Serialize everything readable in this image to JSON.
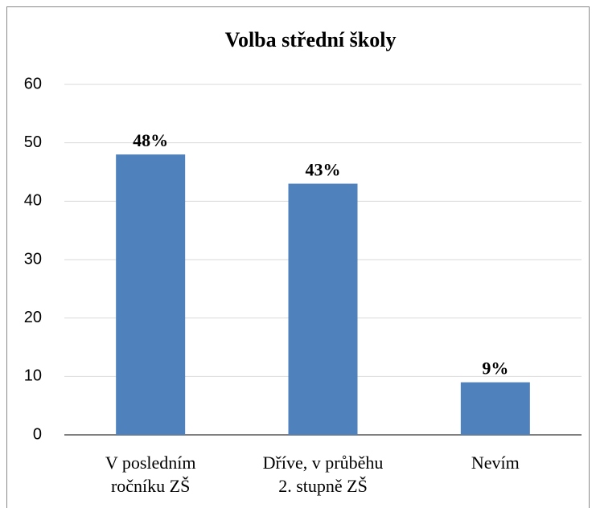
{
  "chart_data": {
    "type": "bar",
    "title": "Volba střední školy",
    "categories": [
      "V posledním\nročníku ZŠ",
      "Dříve, v průběhu\n2. stupně ZŠ",
      "Nevím"
    ],
    "values": [
      48,
      43,
      9
    ],
    "value_labels": [
      "48%",
      "43%",
      "9%"
    ],
    "color": "#4f81bd",
    "ylim": [
      0,
      60
    ],
    "yticks": [
      0,
      10,
      20,
      30,
      40,
      50,
      60
    ],
    "grid": true
  }
}
